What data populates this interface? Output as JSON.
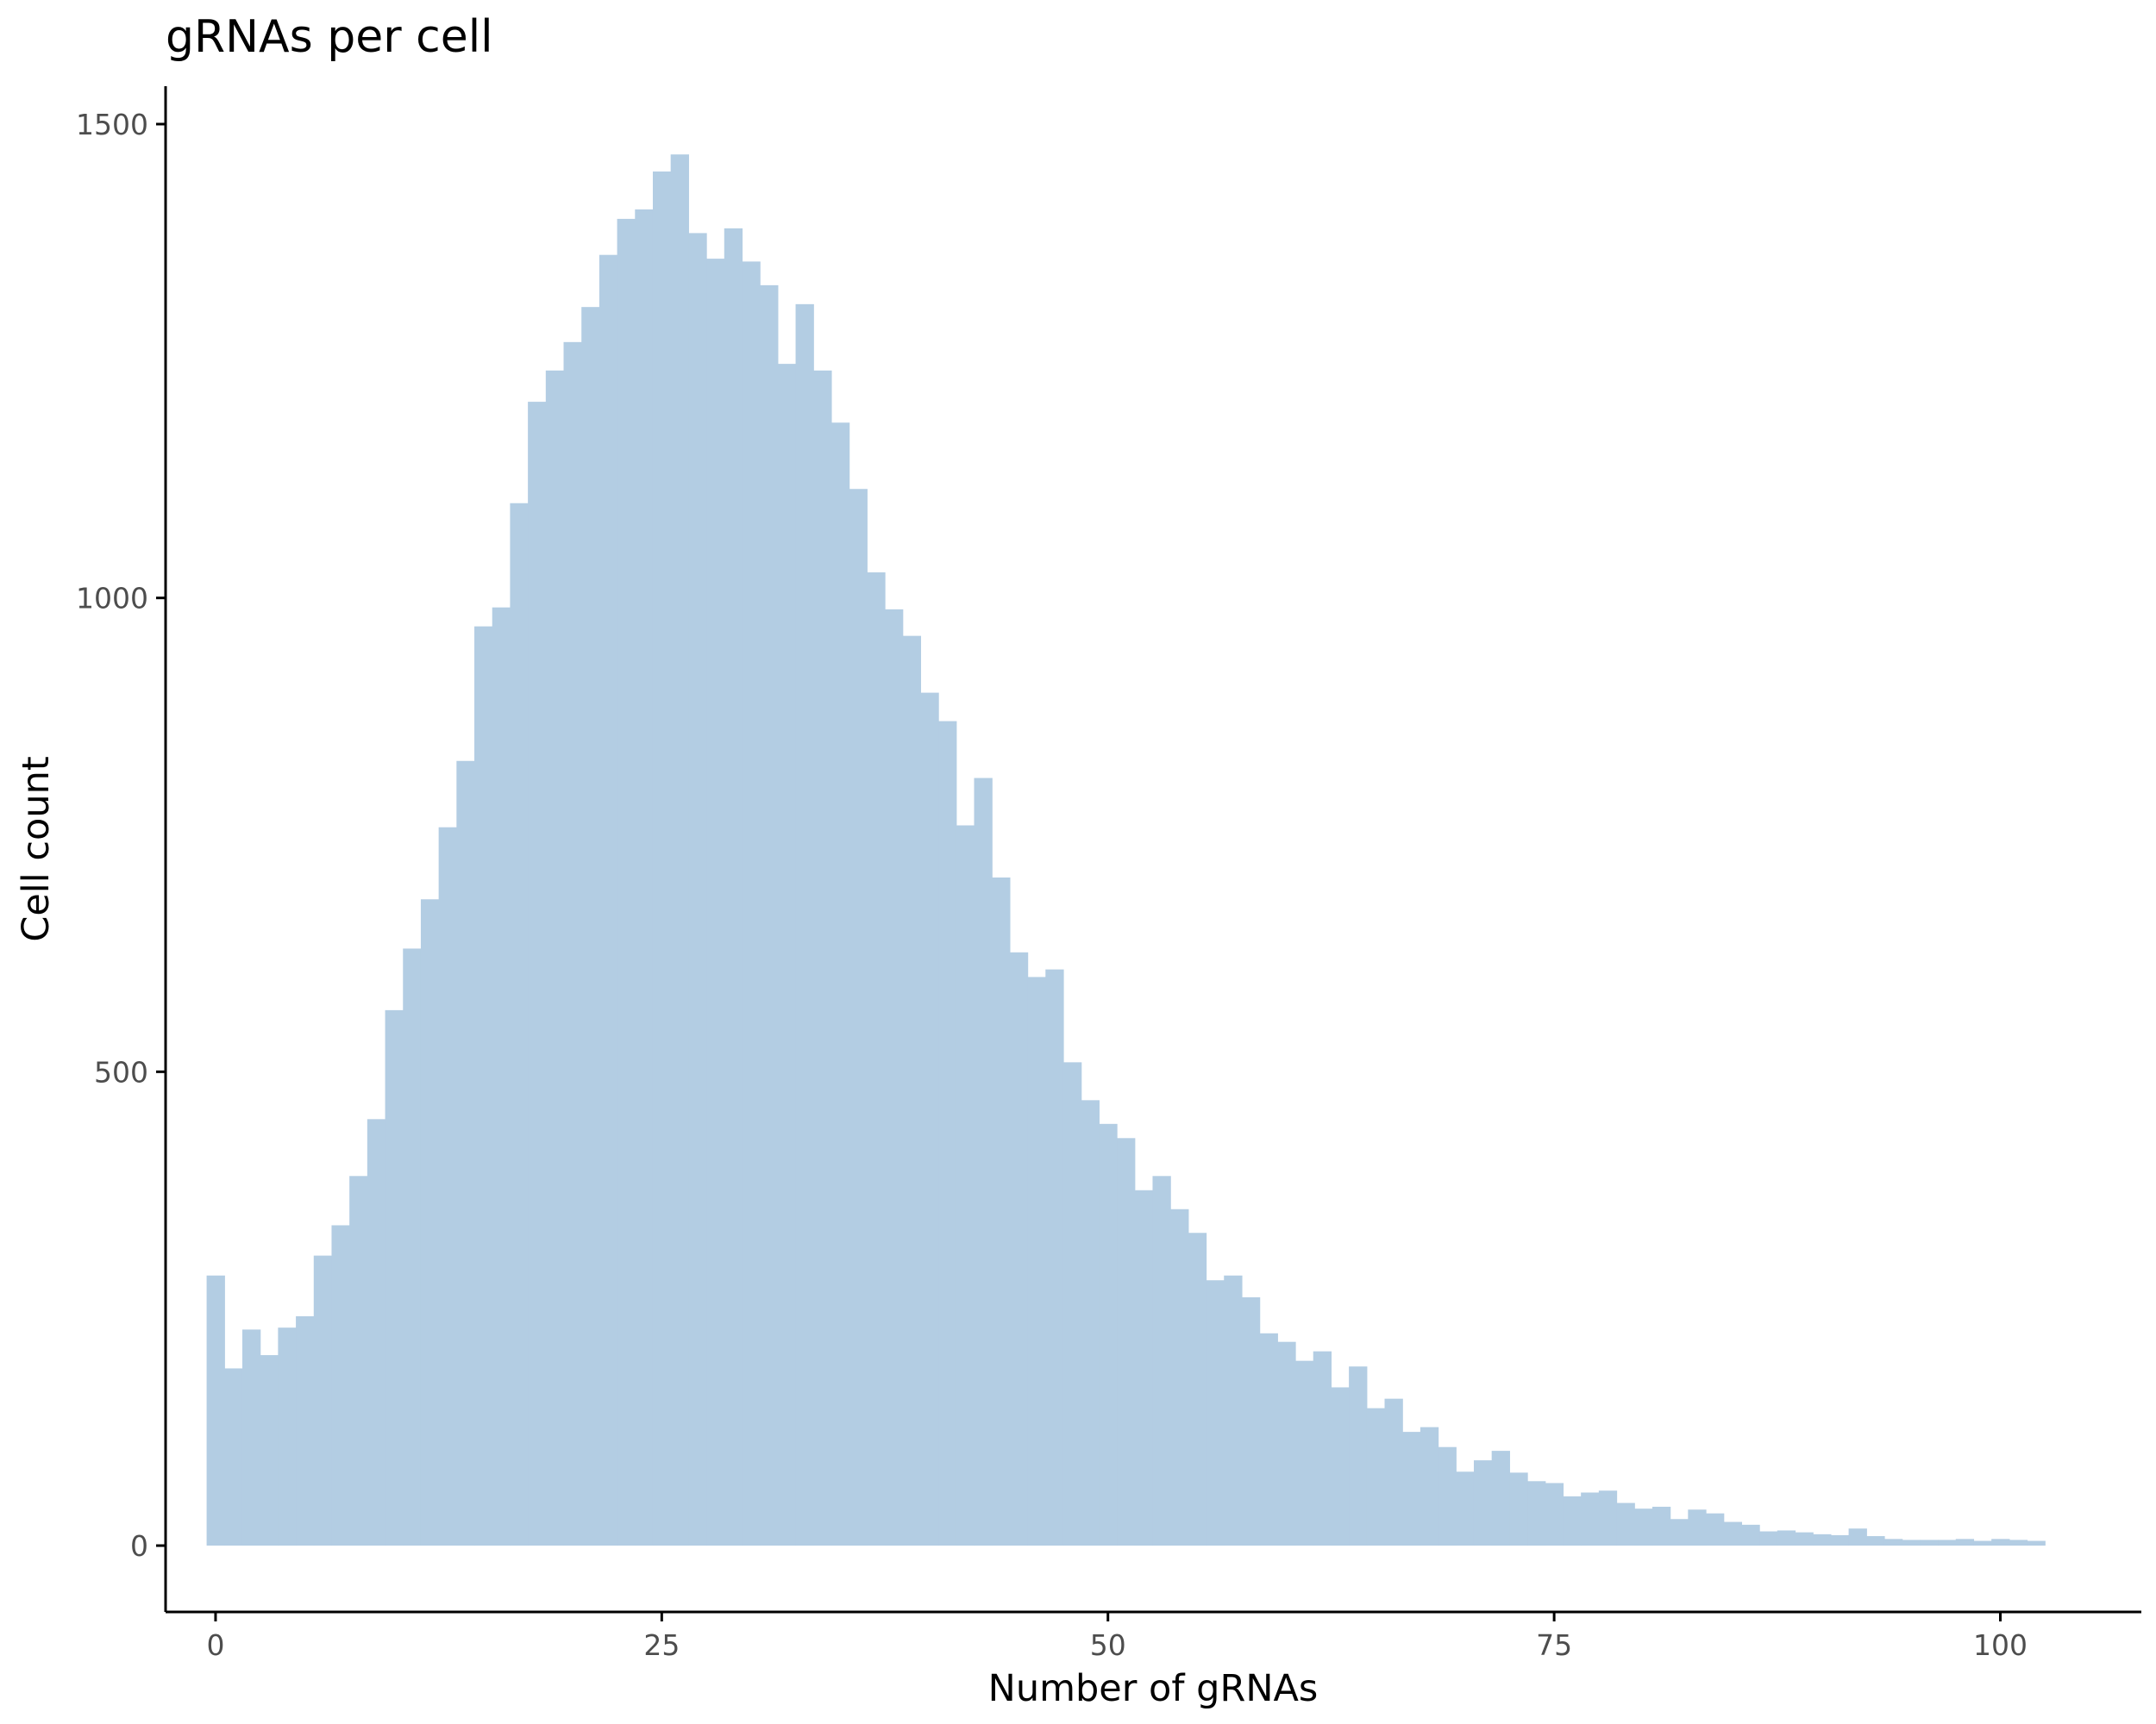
{
  "chart_data": {
    "type": "bar",
    "title": "gRNAs per cell",
    "xlabel": "Number of gRNAs",
    "ylabel": "Cell count",
    "xlim": [
      -2.8,
      107.9
    ],
    "ylim": [
      -70,
      1540
    ],
    "xticks": [
      0,
      25,
      50,
      75,
      100
    ],
    "xtick_labels": [
      "0",
      "25",
      "50",
      "75",
      "100"
    ],
    "yticks": [
      0,
      500,
      1000,
      1500
    ],
    "ytick_labels": [
      "0",
      "500",
      "1000",
      "1500"
    ],
    "bin_start": -0.5,
    "bin_width": 1,
    "x": [
      0,
      1,
      2,
      3,
      4,
      5,
      6,
      7,
      8,
      9,
      10,
      11,
      12,
      13,
      14,
      15,
      16,
      17,
      18,
      19,
      20,
      21,
      22,
      23,
      24,
      25,
      26,
      27,
      28,
      29,
      30,
      31,
      32,
      33,
      34,
      35,
      36,
      37,
      38,
      39,
      40,
      41,
      42,
      43,
      44,
      45,
      46,
      47,
      48,
      49,
      50,
      51,
      52,
      53,
      54,
      55,
      56,
      57,
      58,
      59,
      60,
      61,
      62,
      63,
      64,
      65,
      66,
      67,
      68,
      69,
      70,
      71,
      72,
      73,
      74,
      75,
      76,
      77,
      78,
      79,
      80,
      81,
      82,
      83,
      84,
      85,
      86,
      87,
      88,
      89,
      90,
      91,
      92,
      93,
      94,
      95,
      96,
      97,
      98,
      99,
      100,
      101,
      102
    ],
    "values": [
      285,
      187,
      228,
      201,
      230,
      242,
      306,
      338,
      390,
      450,
      565,
      630,
      682,
      758,
      828,
      970,
      990,
      1100,
      1207,
      1240,
      1270,
      1307,
      1362,
      1400,
      1410,
      1450,
      1468,
      1385,
      1358,
      1390,
      1355,
      1330,
      1247,
      1310,
      1240,
      1185,
      1115,
      1027,
      988,
      960,
      900,
      870,
      760,
      810,
      705,
      626,
      600,
      608,
      510,
      470,
      445,
      430,
      375,
      390,
      355,
      330,
      280,
      285,
      262,
      224,
      215,
      195,
      205,
      167,
      189,
      145,
      155,
      120,
      125,
      104,
      78,
      90,
      100,
      77,
      68,
      66,
      52,
      56,
      58,
      45,
      39,
      41,
      28,
      38,
      34,
      25,
      22,
      15,
      16,
      14,
      12,
      11,
      18,
      10,
      7,
      6,
      6,
      6,
      7,
      5,
      7,
      6,
      5
    ],
    "grid": false,
    "legend": "none",
    "colors": {
      "bar_fill": "#b3cde3",
      "axis_line": "#000000",
      "tick_text": "#4d4d4d"
    }
  }
}
